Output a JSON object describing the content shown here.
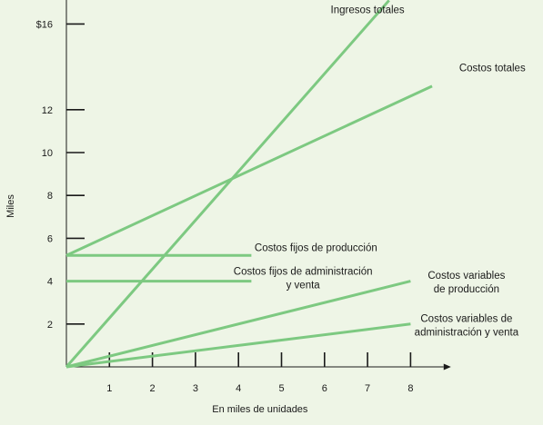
{
  "chart_data": {
    "type": "line",
    "title": "",
    "xlabel": "En miles de unidades",
    "ylabel": "Miles",
    "xlim": [
      0,
      8.6
    ],
    "ylim": [
      0,
      17.5
    ],
    "x_ticks": [
      1,
      2,
      3,
      4,
      5,
      6,
      7,
      8
    ],
    "y_ticks": [
      {
        "value": 2,
        "label": "2"
      },
      {
        "value": 4,
        "label": "4"
      },
      {
        "value": 6,
        "label": "6"
      },
      {
        "value": 8,
        "label": "8"
      },
      {
        "value": 10,
        "label": "10"
      },
      {
        "value": 12,
        "label": "12"
      },
      {
        "value": 16,
        "label": "$16"
      }
    ],
    "grid": false,
    "line_color": "#7dc981",
    "series": [
      {
        "name": "Ingresos totales",
        "x": [
          0,
          7.5
        ],
        "y": [
          0,
          17.1
        ]
      },
      {
        "name": "Costos totales",
        "x": [
          0,
          8.5
        ],
        "y": [
          5.2,
          13.1
        ]
      },
      {
        "name": "Costos fijos de producción",
        "x": [
          0,
          4.3
        ],
        "y": [
          5.2,
          5.2
        ]
      },
      {
        "name": "Costos fijos de administración y venta",
        "x": [
          0,
          4.3
        ],
        "y": [
          4.0,
          4.0
        ]
      },
      {
        "name": "Costos variables de producción",
        "x": [
          0,
          8
        ],
        "y": [
          0,
          4.0
        ]
      },
      {
        "name": "Costos variables de administración y venta",
        "x": [
          0,
          8
        ],
        "y": [
          0,
          2.0
        ]
      }
    ],
    "series_labels": [
      {
        "lines": [
          "Ingresos totales"
        ],
        "anchor": "middle",
        "at": [
          7,
          16.5
        ]
      },
      {
        "lines": [
          "Costos totales"
        ],
        "anchor": "middle",
        "at": [
          9.9,
          13.8
        ]
      },
      {
        "lines": [
          "Costos fijos de producción"
        ],
        "anchor": "middle",
        "at": [
          5.8,
          5.4
        ]
      },
      {
        "lines": [
          "Costos fijos de administración",
          "y venta"
        ],
        "anchor": "middle",
        "at": [
          5.5,
          4.3
        ]
      },
      {
        "lines": [
          "Costos variables",
          "de producción"
        ],
        "anchor": "middle",
        "at": [
          9.3,
          4.1
        ]
      },
      {
        "lines": [
          "Costos variables de",
          "administración y venta"
        ],
        "anchor": "middle",
        "at": [
          9.3,
          2.1
        ]
      }
    ]
  }
}
